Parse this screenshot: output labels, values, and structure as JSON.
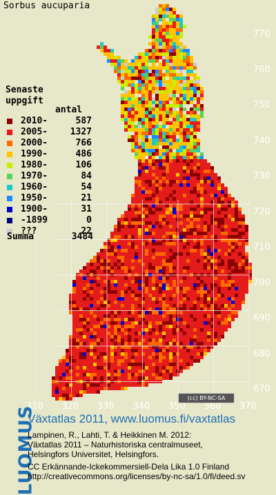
{
  "map": {
    "species": "Sorbus aucuparia",
    "legend_title_line1": "Senaste",
    "legend_title_line2": "uppgift",
    "legend_count_header": "antal",
    "legend": [
      {
        "label": "2010-",
        "count": "587",
        "color": "#8b0000"
      },
      {
        "label": "2005-",
        "count": "1327",
        "color": "#e41c1c"
      },
      {
        "label": "2000-",
        "count": "766",
        "color": "#ff6a00"
      },
      {
        "label": "1990-",
        "count": "486",
        "color": "#ffc400"
      },
      {
        "label": "1980-",
        "count": "106",
        "color": "#c8f000"
      },
      {
        "label": "1970-",
        "count": "84",
        "color": "#5ad25a"
      },
      {
        "label": "1960-",
        "count": "54",
        "color": "#1fc8c8"
      },
      {
        "label": "1950-",
        "count": "21",
        "color": "#1e88ff"
      },
      {
        "label": "1900-",
        "count": "31",
        "color": "#0000cc"
      },
      {
        "label": "-1899",
        "count": "0",
        "color": "#000080"
      },
      {
        "label": "???",
        "count": "22",
        "color": "#cccccc"
      }
    ],
    "summa_label": "Summa",
    "summa_count": "3484",
    "y_ticks": [
      "770",
      "760",
      "750",
      "740",
      "730",
      "720",
      "710",
      "700",
      "690",
      "680",
      "670"
    ],
    "x_ticks": [
      "310",
      "320",
      "330",
      "340",
      "350",
      "360",
      "370"
    ],
    "cc_badge": "BY-NC-SA"
  },
  "footer": {
    "brand": "LUOMUS",
    "title": "Växtatlas 2011, www.luomus.fi/vaxtatlas",
    "citation_line1": "Lampinen, R., Lahti, T. & Heikkinen M. 2012:",
    "citation_line2": "Växtatlas 2011 – Naturhistoriska centralmuseet,",
    "citation_line3": "Helsingfors Universitet, Helsingfors.",
    "license_line1": "CC Erkännande-Ickekommersiell-Dela Lika 1.0 Finland",
    "license_line2": "http://creativecommons.org/licenses/by-nc-sa/1.0/fi/deed.sv"
  }
}
